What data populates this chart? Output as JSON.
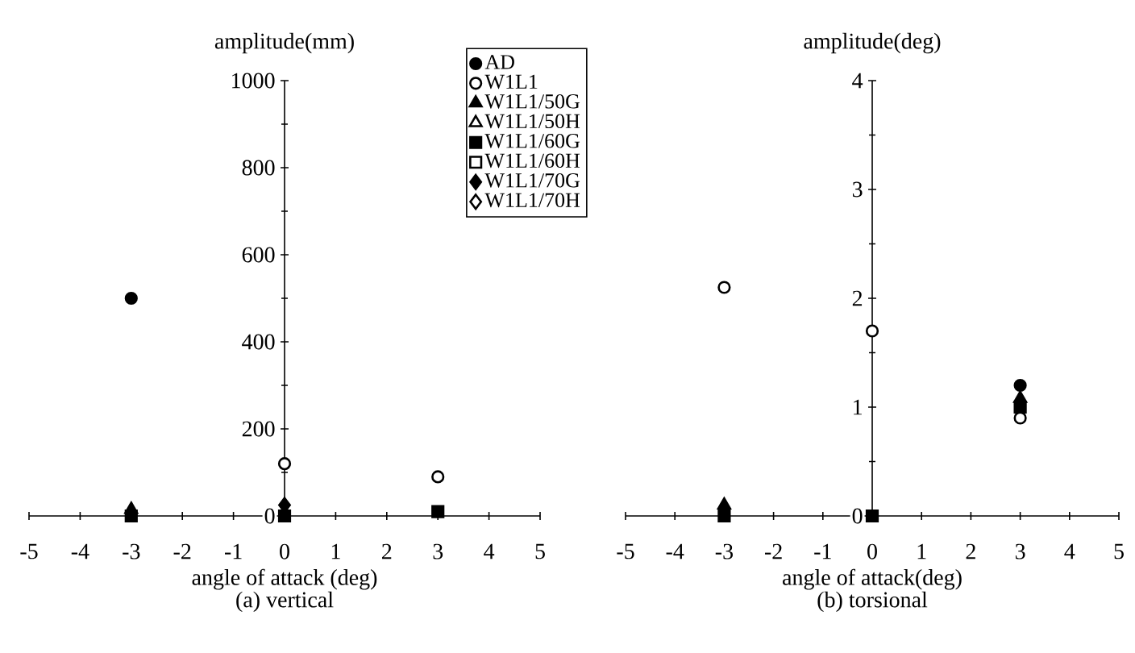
{
  "chart_data": [
    {
      "type": "scatter",
      "title": "(a) vertical",
      "xlabel": "angle of attack (deg)",
      "ylabel": "amplitude(mm)",
      "x": [
        -3,
        0,
        3
      ],
      "xlim": [
        -5,
        5
      ],
      "xticks": [
        -5,
        -4,
        -3,
        -2,
        -1,
        0,
        1,
        2,
        3,
        4,
        5
      ],
      "ylim": [
        0,
        1000
      ],
      "yticks": [
        0,
        200,
        400,
        600,
        800,
        1000
      ],
      "legend": "top right",
      "series": [
        {
          "name": "AD",
          "color": "#000000",
          "marker": "circle",
          "values": [
            500,
            null,
            null
          ]
        },
        {
          "name": "W1L1",
          "color": "#ffffff",
          "marker": "circle",
          "values": [
            null,
            120,
            90
          ]
        },
        {
          "name": "W1L1/50G",
          "color": "#000000",
          "marker": "triangle",
          "values": [
            15,
            null,
            null
          ]
        },
        {
          "name": "W1L1/50H",
          "color": "#ffffff",
          "marker": "triangle",
          "values": [
            null,
            null,
            null
          ]
        },
        {
          "name": "W1L1/60G",
          "color": "#000000",
          "marker": "square",
          "values": [
            0,
            0,
            10
          ]
        },
        {
          "name": "W1L1/60H",
          "color": "#ffffff",
          "marker": "square",
          "values": [
            null,
            null,
            null
          ]
        },
        {
          "name": "W1L1/70G",
          "color": "#000000",
          "marker": "diamond",
          "values": [
            null,
            25,
            null
          ]
        },
        {
          "name": "W1L1/70H",
          "color": "#ffffff",
          "marker": "diamond",
          "values": [
            null,
            null,
            null
          ]
        }
      ]
    },
    {
      "type": "scatter",
      "title": "(b) torsional",
      "xlabel": "angle of attack(deg)",
      "ylabel": "amplitude(deg)",
      "x": [
        -3,
        0,
        3
      ],
      "xlim": [
        -5,
        5
      ],
      "xticks": [
        -5,
        -4,
        -3,
        -2,
        -1,
        0,
        1,
        2,
        3,
        4,
        5
      ],
      "ylim": [
        0,
        4
      ],
      "yticks": [
        0,
        1,
        2,
        3,
        4
      ],
      "series": [
        {
          "color": "#000000",
          "marker": "circle",
          "values": [
            null,
            null,
            1.2
          ]
        },
        {
          "color": "#ffffff",
          "marker": "circle",
          "values": [
            2.1,
            1.7,
            0.9
          ]
        },
        {
          "color": "#000000",
          "marker": "triangle",
          "values": [
            0.1,
            null,
            1.08
          ]
        },
        {
          "color": "#000000",
          "marker": "square",
          "values": [
            0,
            0,
            1.0
          ]
        }
      ]
    }
  ]
}
